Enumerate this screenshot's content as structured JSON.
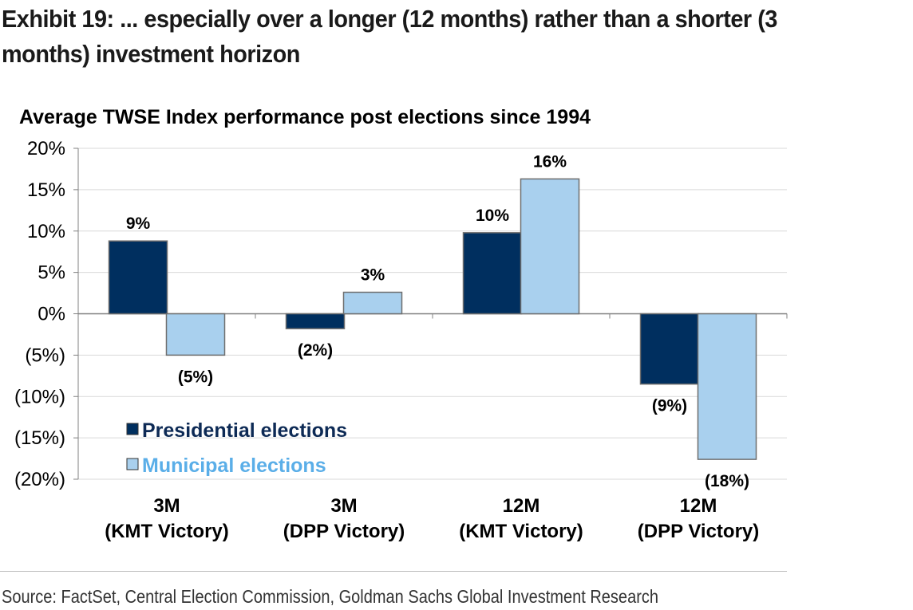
{
  "exhibit": {
    "title": "Exhibit 19: ... especially over a longer (12 months) rather than a shorter (3 months) investment horizon"
  },
  "source": "Source: FactSet, Central Election Commission, Goldman Sachs Global Investment Research",
  "chart_data": {
    "type": "bar",
    "title": "Average TWSE Index performance post elections since 1994",
    "xlabel": "",
    "ylabel": "",
    "ylim": [
      -20,
      20
    ],
    "y_ticks": [
      20,
      15,
      10,
      5,
      0,
      -5,
      -10,
      -15,
      -20
    ],
    "y_tick_labels": [
      "20%",
      "15%",
      "10%",
      "5%",
      "0%",
      "(5%)",
      "(10%)",
      "(15%)",
      "(20%)"
    ],
    "grid": true,
    "legend_position": "bottom-left",
    "categories": [
      [
        "3M",
        "(KMT Victory)"
      ],
      [
        "3M",
        "(DPP Victory)"
      ],
      [
        "12M",
        "(KMT Victory)"
      ],
      [
        "12M",
        "(DPP Victory)"
      ]
    ],
    "series": [
      {
        "name": "Presidential elections",
        "color": "#002f5f",
        "legend_text_color": "#0d2a55",
        "values": [
          8.8,
          -1.8,
          9.8,
          -8.5
        ],
        "labels": [
          "9%",
          "(2%)",
          "10%",
          "(9%)"
        ]
      },
      {
        "name": "Municipal elections",
        "color": "#a9d0ee",
        "legend_text_color": "#5aaee8",
        "values": [
          -5.0,
          2.6,
          16.3,
          -17.6
        ],
        "labels": [
          "(5%)",
          "3%",
          "16%",
          "(18%)"
        ]
      }
    ]
  }
}
